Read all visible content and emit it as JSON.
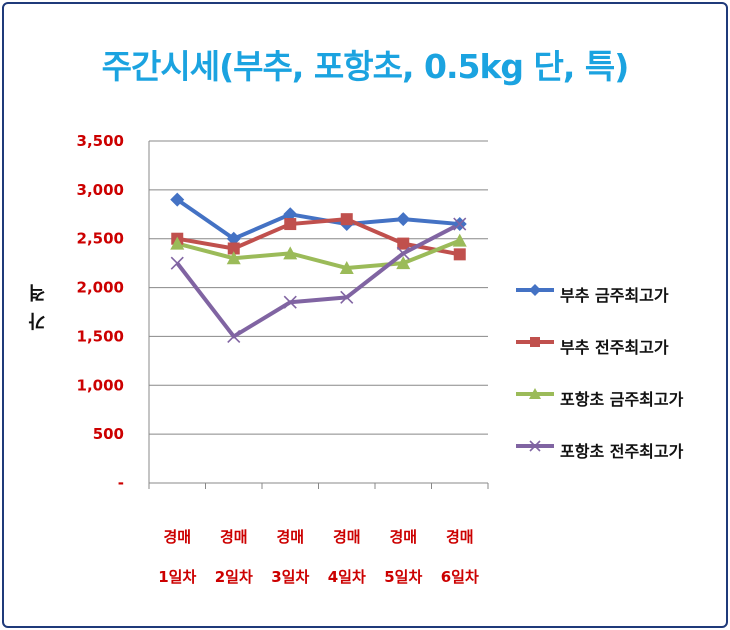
{
  "chart_data": {
    "type": "line",
    "title": "주간시세(부추, 포항초, 0.5kg 단, 특)",
    "ylabel": "가 격",
    "xlabel": "",
    "categories": [
      [
        "경매",
        "1일차"
      ],
      [
        "경매",
        "2일차"
      ],
      [
        "경매",
        "3일차"
      ],
      [
        "경매",
        "4일차"
      ],
      [
        "경매",
        "5일차"
      ],
      [
        "경매",
        "6일차"
      ]
    ],
    "ylim": [
      0,
      3500
    ],
    "yticks": [
      0,
      500,
      1000,
      1500,
      2000,
      2500,
      3000,
      3500
    ],
    "ytick_labels": [
      "-",
      "500",
      "1,000",
      "1,500",
      "2,000",
      "2,500",
      "3,000",
      "3,500"
    ],
    "grid": true,
    "legend_position": "right",
    "series": [
      {
        "name": "부추 금주최고가",
        "color": "#4472c4",
        "marker": "diamond",
        "values": [
          2900,
          2500,
          2750,
          2650,
          2700,
          2650
        ]
      },
      {
        "name": "부추 전주최고가",
        "color": "#c0504d",
        "marker": "square",
        "values": [
          2500,
          2400,
          2650,
          2700,
          2450,
          2340
        ]
      },
      {
        "name": "포항초 금주최고가",
        "color": "#9bbb59",
        "marker": "triangle",
        "values": [
          2450,
          2300,
          2350,
          2200,
          2250,
          2480
        ]
      },
      {
        "name": "포항초 전주최고가",
        "color": "#8064a2",
        "marker": "x",
        "values": [
          2250,
          1500,
          1850,
          1900,
          2350,
          2650
        ]
      }
    ]
  }
}
